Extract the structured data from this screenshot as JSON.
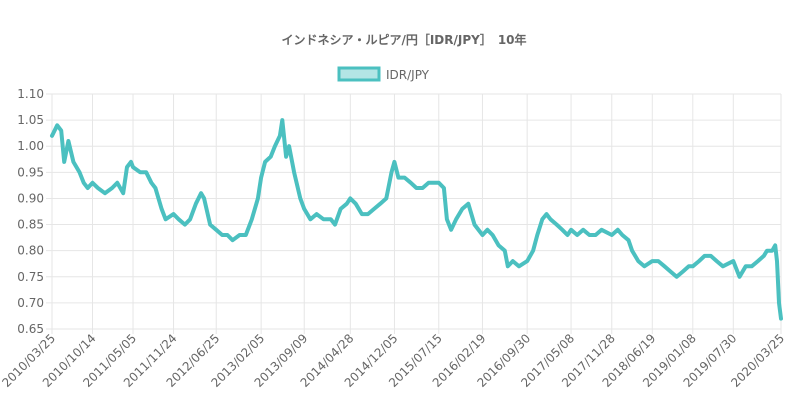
{
  "chart_data": {
    "type": "line",
    "title": "インドネシア・ルピア/円［IDR/JPY］　10年",
    "legend": {
      "position": "top",
      "entries": [
        "IDR/JPY"
      ]
    },
    "series": [
      {
        "name": "IDR/JPY",
        "color": "#4bc0c0",
        "points": [
          [
            "2010/03/25",
            1.02
          ],
          [
            "2010/04/20",
            1.04
          ],
          [
            "2010/05/10",
            1.03
          ],
          [
            "2010/05/25",
            0.97
          ],
          [
            "2010/06/15",
            1.01
          ],
          [
            "2010/07/10",
            0.97
          ],
          [
            "2010/08/10",
            0.95
          ],
          [
            "2010/08/31",
            0.93
          ],
          [
            "2010/09/20",
            0.92
          ],
          [
            "2010/10/14",
            0.93
          ],
          [
            "2010/11/10",
            0.92
          ],
          [
            "2010/12/15",
            0.91
          ],
          [
            "2011/01/20",
            0.92
          ],
          [
            "2011/02/15",
            0.93
          ],
          [
            "2011/03/17",
            0.91
          ],
          [
            "2011/04/05",
            0.96
          ],
          [
            "2011/04/25",
            0.97
          ],
          [
            "2011/05/05",
            0.96
          ],
          [
            "2011/06/10",
            0.95
          ],
          [
            "2011/07/10",
            0.95
          ],
          [
            "2011/08/05",
            0.93
          ],
          [
            "2011/08/25",
            0.92
          ],
          [
            "2011/09/25",
            0.88
          ],
          [
            "2011/10/15",
            0.86
          ],
          [
            "2011/11/24",
            0.87
          ],
          [
            "2011/12/20",
            0.86
          ],
          [
            "2012/01/20",
            0.85
          ],
          [
            "2012/02/15",
            0.86
          ],
          [
            "2012/03/15",
            0.89
          ],
          [
            "2012/04/10",
            0.91
          ],
          [
            "2012/04/25",
            0.9
          ],
          [
            "2012/05/25",
            0.85
          ],
          [
            "2012/06/25",
            0.84
          ],
          [
            "2012/07/25",
            0.83
          ],
          [
            "2012/08/20",
            0.83
          ],
          [
            "2012/09/15",
            0.82
          ],
          [
            "2012/10/20",
            0.83
          ],
          [
            "2012/11/20",
            0.83
          ],
          [
            "2012/12/20",
            0.86
          ],
          [
            "2013/01/20",
            0.9
          ],
          [
            "2013/02/05",
            0.94
          ],
          [
            "2013/02/25",
            0.97
          ],
          [
            "2013/03/25",
            0.98
          ],
          [
            "2013/04/15",
            1.0
          ],
          [
            "2013/05/10",
            1.02
          ],
          [
            "2013/05/22",
            1.05
          ],
          [
            "2013/06/10",
            0.98
          ],
          [
            "2013/06/25",
            1.0
          ],
          [
            "2013/07/20",
            0.95
          ],
          [
            "2013/08/20",
            0.9
          ],
          [
            "2013/09/09",
            0.88
          ],
          [
            "2013/10/10",
            0.86
          ],
          [
            "2013/11/10",
            0.87
          ],
          [
            "2013/12/15",
            0.86
          ],
          [
            "2014/01/20",
            0.86
          ],
          [
            "2014/02/10",
            0.85
          ],
          [
            "2014/03/10",
            0.88
          ],
          [
            "2014/04/10",
            0.89
          ],
          [
            "2014/04/28",
            0.9
          ],
          [
            "2014/05/25",
            0.89
          ],
          [
            "2014/06/25",
            0.87
          ],
          [
            "2014/07/25",
            0.87
          ],
          [
            "2014/08/25",
            0.88
          ],
          [
            "2014/09/25",
            0.89
          ],
          [
            "2014/10/25",
            0.9
          ],
          [
            "2014/11/20",
            0.95
          ],
          [
            "2014/12/05",
            0.97
          ],
          [
            "2014/12/25",
            0.94
          ],
          [
            "2015/01/25",
            0.94
          ],
          [
            "2015/02/25",
            0.93
          ],
          [
            "2015/03/25",
            0.92
          ],
          [
            "2015/04/25",
            0.92
          ],
          [
            "2015/05/25",
            0.93
          ],
          [
            "2015/06/10",
            0.93
          ],
          [
            "2015/06/25",
            0.93
          ],
          [
            "2015/07/15",
            0.93
          ],
          [
            "2015/08/10",
            0.92
          ],
          [
            "2015/08/25",
            0.86
          ],
          [
            "2015/09/15",
            0.84
          ],
          [
            "2015/10/10",
            0.86
          ],
          [
            "2015/11/10",
            0.88
          ],
          [
            "2015/12/10",
            0.89
          ],
          [
            "2016/01/10",
            0.85
          ],
          [
            "2016/02/19",
            0.83
          ],
          [
            "2016/03/15",
            0.84
          ],
          [
            "2016/04/10",
            0.83
          ],
          [
            "2016/05/10",
            0.81
          ],
          [
            "2016/06/10",
            0.8
          ],
          [
            "2016/06/25",
            0.77
          ],
          [
            "2016/07/20",
            0.78
          ],
          [
            "2016/08/20",
            0.77
          ],
          [
            "2016/09/30",
            0.78
          ],
          [
            "2016/10/30",
            0.8
          ],
          [
            "2016/11/20",
            0.83
          ],
          [
            "2016/12/15",
            0.86
          ],
          [
            "2017/01/05",
            0.87
          ],
          [
            "2017/01/25",
            0.86
          ],
          [
            "2017/02/25",
            0.85
          ],
          [
            "2017/03/25",
            0.84
          ],
          [
            "2017/04/20",
            0.83
          ],
          [
            "2017/05/08",
            0.84
          ],
          [
            "2017/06/08",
            0.83
          ],
          [
            "2017/07/08",
            0.84
          ],
          [
            "2017/08/08",
            0.83
          ],
          [
            "2017/09/08",
            0.83
          ],
          [
            "2017/10/08",
            0.84
          ],
          [
            "2017/11/28",
            0.83
          ],
          [
            "2017/12/28",
            0.84
          ],
          [
            "2018/01/20",
            0.83
          ],
          [
            "2018/02/20",
            0.82
          ],
          [
            "2018/03/10",
            0.8
          ],
          [
            "2018/04/10",
            0.78
          ],
          [
            "2018/05/10",
            0.77
          ],
          [
            "2018/06/19",
            0.78
          ],
          [
            "2018/07/19",
            0.78
          ],
          [
            "2018/08/19",
            0.77
          ],
          [
            "2018/09/19",
            0.76
          ],
          [
            "2018/10/19",
            0.75
          ],
          [
            "2018/11/19",
            0.76
          ],
          [
            "2018/12/19",
            0.77
          ],
          [
            "2019/01/08",
            0.77
          ],
          [
            "2019/02/08",
            0.78
          ],
          [
            "2019/03/08",
            0.79
          ],
          [
            "2019/04/08",
            0.79
          ],
          [
            "2019/05/08",
            0.78
          ],
          [
            "2019/06/08",
            0.77
          ],
          [
            "2019/07/30",
            0.78
          ],
          [
            "2019/08/30",
            0.75
          ],
          [
            "2019/09/30",
            0.77
          ],
          [
            "2019/10/30",
            0.77
          ],
          [
            "2019/11/30",
            0.78
          ],
          [
            "2019/12/30",
            0.79
          ],
          [
            "2020/01/15",
            0.8
          ],
          [
            "2020/02/10",
            0.8
          ],
          [
            "2020/02/25",
            0.81
          ],
          [
            "2020/03/05",
            0.78
          ],
          [
            "2020/03/15",
            0.7
          ],
          [
            "2020/03/25",
            0.67
          ]
        ]
      }
    ],
    "y_axis": {
      "min": 0.65,
      "max": 1.1,
      "ticks": [
        "1.10",
        "1.05",
        "1.00",
        "0.95",
        "0.90",
        "0.85",
        "0.80",
        "0.75",
        "0.70",
        "0.65"
      ]
    },
    "x_axis": {
      "min": "2010/03/25",
      "max": "2020/03/25",
      "ticks": [
        "2010/03/25",
        "2010/10/14",
        "2011/05/05",
        "2011/11/24",
        "2012/06/25",
        "2013/02/05",
        "2013/09/09",
        "2014/04/28",
        "2014/12/05",
        "2015/07/15",
        "2016/02/19",
        "2016/09/30",
        "2017/05/08",
        "2017/11/28",
        "2018/06/19",
        "2019/01/08",
        "2019/07/30",
        "2020/03/25"
      ]
    },
    "grid": true
  }
}
